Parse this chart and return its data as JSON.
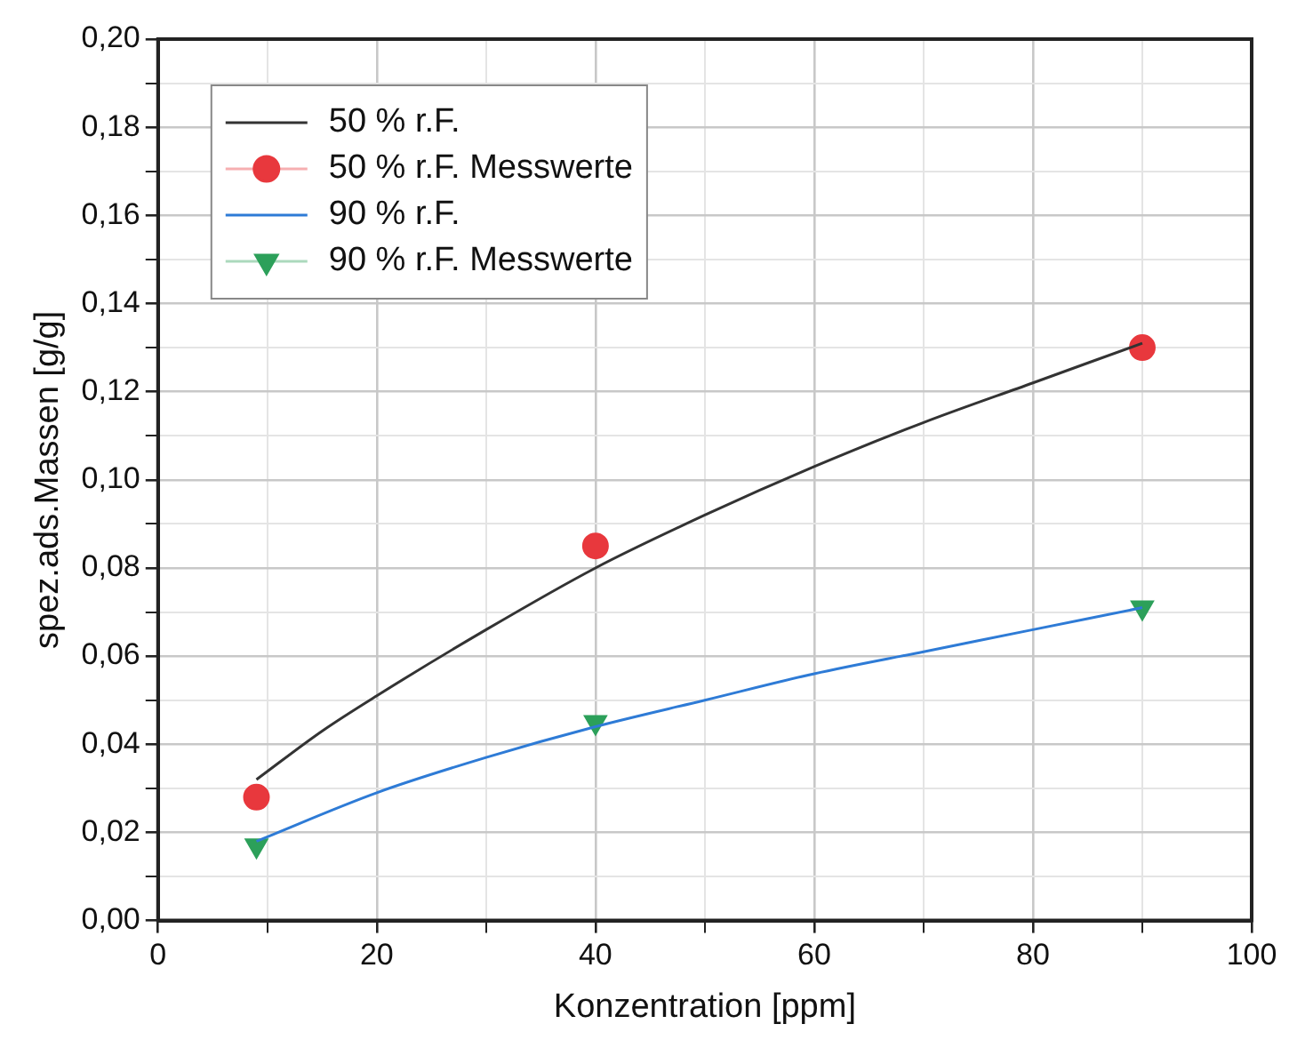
{
  "chart_data": {
    "type": "line",
    "xlabel": "Konzentration [ppm]",
    "ylabel": "spez.ads.Massen [g/g]",
    "xlim": [
      0,
      100
    ],
    "ylim": [
      0,
      0.2
    ],
    "xticks": [
      0,
      {
        "value": 10,
        "label": null
      },
      20,
      {
        "value": 30,
        "label": null
      },
      40,
      {
        "value": 50,
        "label": null
      },
      60,
      {
        "value": 70,
        "label": null
      },
      80,
      {
        "value": 90,
        "label": null
      },
      100
    ],
    "yticks": [
      {
        "value": 0,
        "label": "0,00"
      },
      {
        "value": 0.01,
        "label": null
      },
      {
        "value": 0.02,
        "label": "0,02"
      },
      {
        "value": 0.03,
        "label": null
      },
      {
        "value": 0.04,
        "label": "0,04"
      },
      {
        "value": 0.05,
        "label": null
      },
      {
        "value": 0.06,
        "label": "0,06"
      },
      {
        "value": 0.07,
        "label": null
      },
      {
        "value": 0.08,
        "label": "0,08"
      },
      {
        "value": 0.09,
        "label": null
      },
      {
        "value": 0.1,
        "label": "0,10"
      },
      {
        "value": 0.11,
        "label": null
      },
      {
        "value": 0.12,
        "label": "0,12"
      },
      {
        "value": 0.13,
        "label": null
      },
      {
        "value": 0.14,
        "label": "0,14"
      },
      {
        "value": 0.15,
        "label": null
      },
      {
        "value": 0.16,
        "label": "0,16"
      },
      {
        "value": 0.17,
        "label": null
      },
      {
        "value": 0.18,
        "label": "0,18"
      },
      {
        "value": 0.19,
        "label": null
      },
      {
        "value": 0.2,
        "label": "0,20"
      }
    ],
    "grid": true,
    "legend": "top left",
    "series": [
      {
        "name": "50 % r.F.",
        "type": "line",
        "marker": "none",
        "color": "#333333",
        "x": [
          9,
          15,
          20,
          30,
          40,
          50,
          60,
          70,
          80,
          90
        ],
        "values": [
          0.032,
          0.043,
          0.051,
          0.066,
          0.08,
          0.092,
          0.103,
          0.113,
          0.122,
          0.131
        ]
      },
      {
        "name": "50 % r.F. Messwerte",
        "type": "scatter",
        "marker": "circle",
        "color": "#e8383d",
        "x": [
          9,
          40,
          90
        ],
        "values": [
          0.028,
          0.085,
          0.13
        ]
      },
      {
        "name": "90 % r.F.",
        "type": "line",
        "marker": "none",
        "color": "#2e7bd6",
        "x": [
          9,
          20,
          30,
          40,
          50,
          60,
          70,
          80,
          90
        ],
        "values": [
          0.018,
          0.029,
          0.037,
          0.044,
          0.05,
          0.056,
          0.061,
          0.066,
          0.071
        ]
      },
      {
        "name": "90 % r.F. Messwerte",
        "type": "scatter",
        "marker": "triangle",
        "color": "#2ca05a",
        "x": [
          9,
          40,
          90
        ],
        "values": [
          0.017,
          0.045,
          0.071
        ]
      }
    ]
  }
}
